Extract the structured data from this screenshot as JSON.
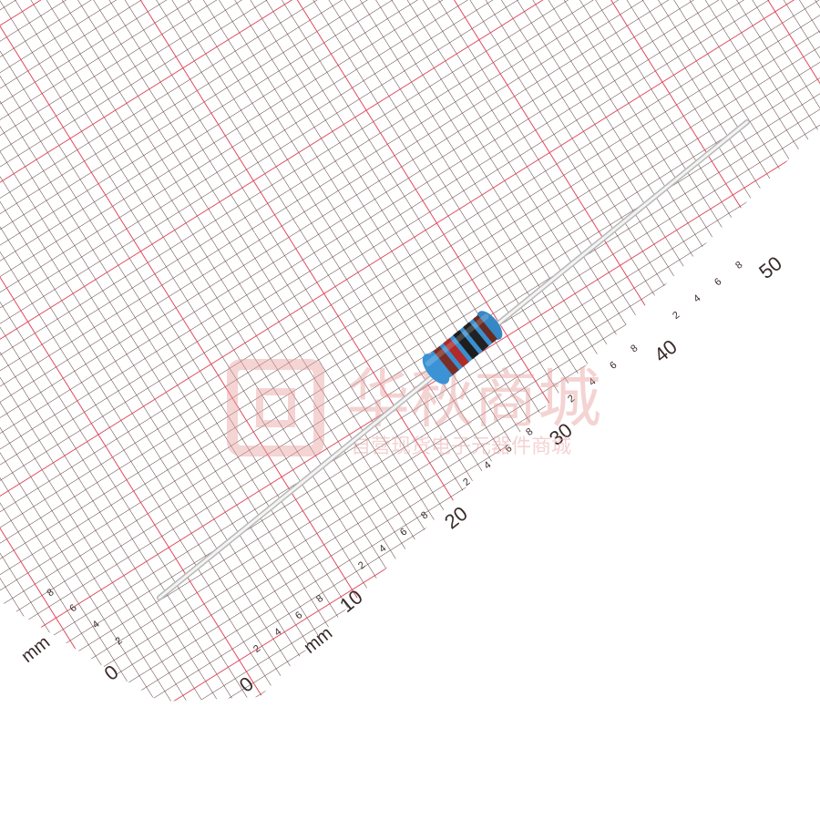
{
  "scene": {
    "subject": "axial-lead resistor on millimetre graph paper",
    "colors": {
      "paper": "#ffffff",
      "grid_minor": "#5a3a3a",
      "grid_major": "#f03a52",
      "resistor_body": "#3a8fd0",
      "band_1": "#7a2e26",
      "band_2": "#b02a2a",
      "band_3": "#1e1e1e",
      "band_4": "#222222",
      "band_5": "#6a2a20",
      "lead": "#e4e4e4"
    }
  },
  "ruler_main": {
    "unit": "mm",
    "major_labels": [
      "0",
      "10",
      "20",
      "30",
      "40",
      "50"
    ],
    "minor_labels": [
      "2",
      "4",
      "6",
      "8"
    ]
  },
  "ruler_left": {
    "unit": "mm",
    "major_labels": [
      "0"
    ],
    "minor_labels": [
      "2",
      "4",
      "6",
      "8"
    ]
  },
  "watermark": {
    "brand": "华秋商城",
    "tagline": "自营现货电子元器件商城"
  }
}
